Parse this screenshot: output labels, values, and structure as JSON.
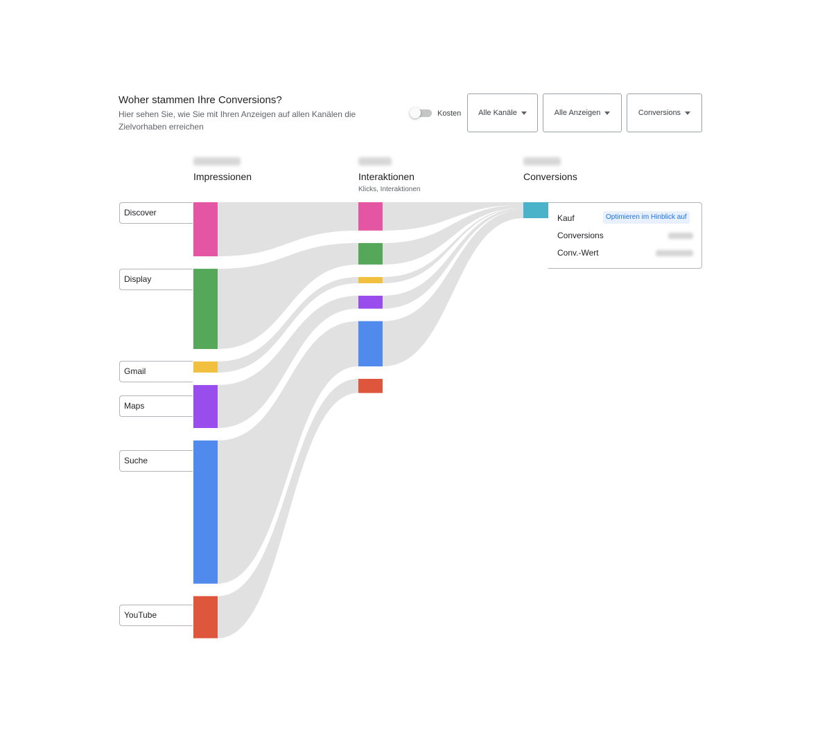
{
  "header": {
    "title": "Woher stammen Ihre Conversions?",
    "subtitle": "Hier sehen Sie, wie Sie mit Ihren Anzeigen auf allen Kanälen die Zielvorhaben erreichen"
  },
  "controls": {
    "cost_toggle_label": "Kosten",
    "cost_toggle_on": false,
    "channels_dropdown": "Alle Kanäle",
    "ads_dropdown": "Alle Anzeigen",
    "metric_dropdown": "Conversions"
  },
  "columns": {
    "impressions": {
      "title": "Impressionen"
    },
    "interactions": {
      "title": "Interaktionen",
      "subtitle": "Klicks, Interaktionen"
    },
    "conversions": {
      "title": "Conversions"
    }
  },
  "conversion_card": {
    "name": "Kauf",
    "optimize_label": "Optimieren im Hinblick auf",
    "conversions_label": "Conversions",
    "value_label": "Conv.-Wert"
  },
  "colors": {
    "link": "#e1e1e1",
    "conversion": "#4ab3c9"
  },
  "chart_data": {
    "type": "sankey",
    "stages": [
      "Impressionen",
      "Interaktionen",
      "Conversions"
    ],
    "channels": [
      {
        "name": "Discover",
        "color": "#e455a4",
        "impressions_share": 0.122,
        "interactions_share": 0.186,
        "conversions_share": 0.17
      },
      {
        "name": "Display",
        "color": "#55a85a",
        "impressions_share": 0.181,
        "interactions_share": 0.141,
        "conversions_share": 0.17
      },
      {
        "name": "Gmail",
        "color": "#f2c03f",
        "impressions_share": 0.025,
        "interactions_share": 0.041,
        "conversions_share": 0.04
      },
      {
        "name": "Maps",
        "color": "#9a4ded",
        "impressions_share": 0.097,
        "interactions_share": 0.085,
        "conversions_share": 0.11
      },
      {
        "name": "Suche",
        "color": "#518aed",
        "impressions_share": 0.323,
        "interactions_share": 0.297,
        "conversions_share": 0.51
      },
      {
        "name": "YouTube",
        "color": "#de563c",
        "impressions_share": 0.095,
        "interactions_share": 0.093,
        "conversions_share": 0.0
      }
    ]
  }
}
